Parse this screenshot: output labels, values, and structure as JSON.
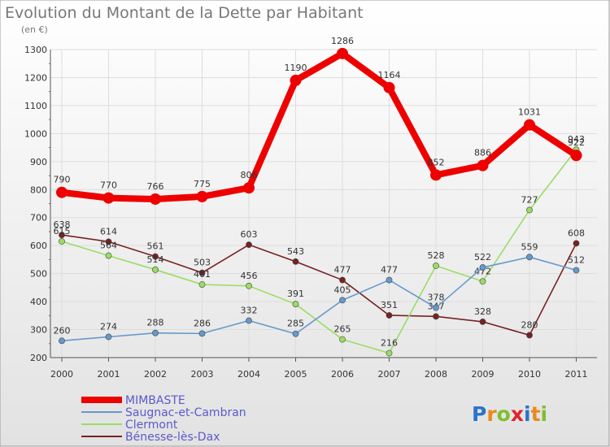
{
  "chart_data": {
    "type": "line",
    "title": "Evolution du Montant de la Dette par Habitant",
    "subtitle": "(en €)",
    "x": [
      "2000",
      "2001",
      "2002",
      "2003",
      "2004",
      "2005",
      "2006",
      "2007",
      "2008",
      "2009",
      "2010",
      "2011"
    ],
    "ylim": [
      200,
      1300
    ],
    "yticks": [
      200,
      300,
      400,
      500,
      600,
      700,
      800,
      900,
      1000,
      1100,
      1200,
      1300
    ],
    "grid": true,
    "legend_position": "bottom-left",
    "series": [
      {
        "name": "MIMBASTE",
        "color": "#ee0000",
        "values": [
          790,
          770,
          766,
          775,
          806,
          1190,
          1286,
          1164,
          852,
          886,
          1031,
          922
        ]
      },
      {
        "name": "Saugnac-et-Cambran",
        "color": "#6699cc",
        "values": [
          260,
          274,
          288,
          286,
          332,
          285,
          405,
          477,
          378,
          522,
          559,
          512
        ]
      },
      {
        "name": "Clermont",
        "color": "#99dd66",
        "values": [
          615,
          564,
          514,
          461,
          456,
          391,
          265,
          216,
          528,
          472,
          727,
          943
        ]
      },
      {
        "name": "Bénesse-lès-Dax",
        "color": "#772222",
        "values": [
          638,
          614,
          561,
          503,
          603,
          543,
          477,
          351,
          347,
          328,
          280,
          608
        ]
      }
    ]
  },
  "logo": {
    "text": "Proxiti"
  }
}
